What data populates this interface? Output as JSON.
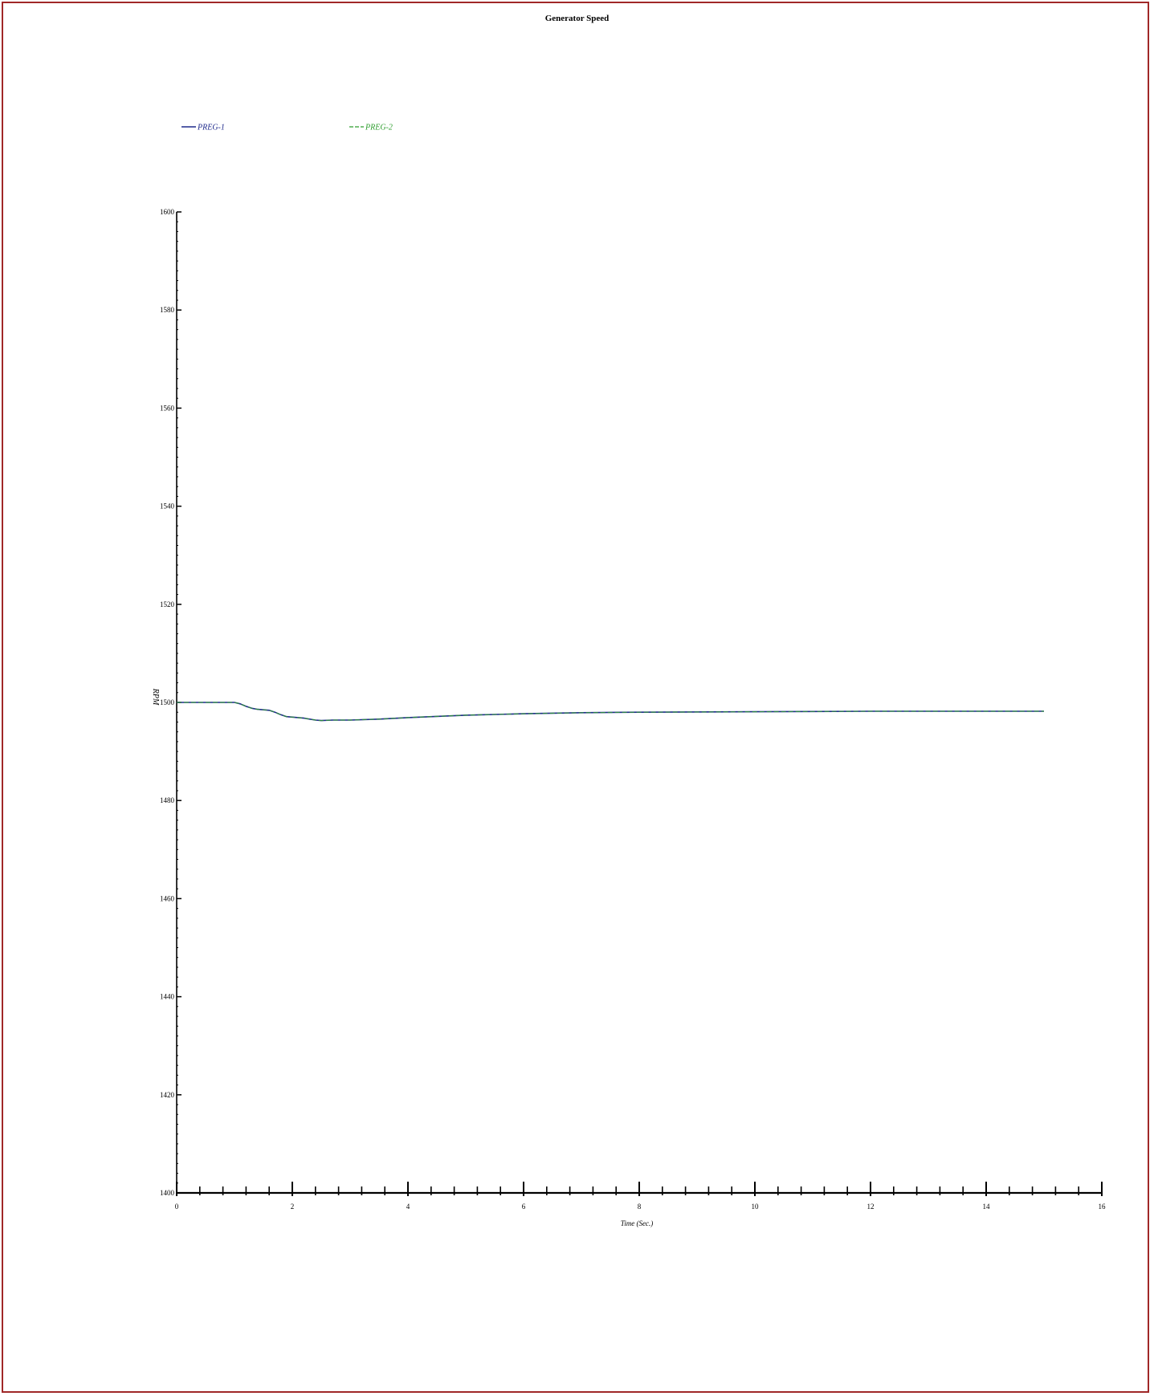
{
  "chart_data": {
    "type": "line",
    "title": "Generator Speed",
    "xlabel": "Time (Sec.)",
    "ylabel": "RPM",
    "xlim": [
      0,
      16
    ],
    "ylim": [
      1400,
      1600
    ],
    "x_ticks": [
      "0",
      "2",
      "4",
      "6",
      "8",
      "10",
      "12",
      "14",
      "16"
    ],
    "y_ticks": [
      "1400",
      "1420",
      "1440",
      "1460",
      "1480",
      "1500",
      "1520",
      "1540",
      "1560",
      "1580",
      "1600"
    ],
    "legend_position": "top-left",
    "series": [
      {
        "name": "PREG-1",
        "color": "#1f2a8c",
        "dash": "solid",
        "x": [
          0,
          0.5,
          1.0,
          1.1,
          1.2,
          1.3,
          1.4,
          1.6,
          1.7,
          1.8,
          1.9,
          2.0,
          2.2,
          2.4,
          2.5,
          2.7,
          3.0,
          3.5,
          4.0,
          5.0,
          6.0,
          7.0,
          8.0,
          10.0,
          12.0,
          14.0,
          15.0
        ],
        "y": [
          1500,
          1500,
          1500,
          1499.7,
          1499.2,
          1498.8,
          1498.6,
          1498.4,
          1498.0,
          1497.5,
          1497.1,
          1497.0,
          1496.8,
          1496.4,
          1496.3,
          1496.4,
          1496.4,
          1496.6,
          1496.9,
          1497.4,
          1497.7,
          1497.9,
          1498.0,
          1498.1,
          1498.2,
          1498.2,
          1498.2
        ]
      },
      {
        "name": "PREG-2",
        "color": "#2e9e2e",
        "dash": "dashed",
        "x": [
          0,
          0.5,
          1.0,
          1.1,
          1.2,
          1.3,
          1.4,
          1.6,
          1.7,
          1.8,
          1.9,
          2.0,
          2.2,
          2.4,
          2.5,
          2.7,
          3.0,
          3.5,
          4.0,
          5.0,
          6.0,
          7.0,
          8.0,
          10.0,
          12.0,
          14.0,
          15.0
        ],
        "y": [
          1500,
          1500,
          1500,
          1499.7,
          1499.2,
          1498.8,
          1498.6,
          1498.4,
          1498.0,
          1497.5,
          1497.1,
          1497.0,
          1496.8,
          1496.4,
          1496.3,
          1496.4,
          1496.4,
          1496.6,
          1496.9,
          1497.4,
          1497.7,
          1497.9,
          1498.0,
          1498.1,
          1498.2,
          1498.2,
          1498.2
        ]
      }
    ]
  }
}
